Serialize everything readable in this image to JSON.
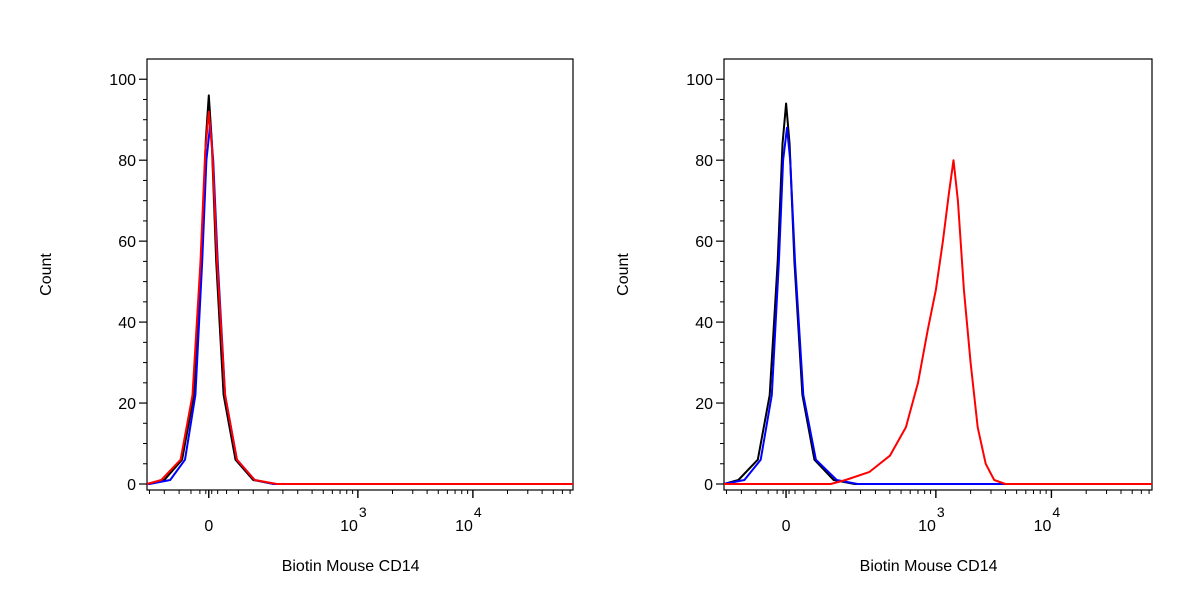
{
  "chart_data": [
    {
      "type": "line",
      "xlabel": "Biotin Mouse CD14",
      "ylabel": "Count",
      "x_scale": "biexponential",
      "ylim": [
        0,
        105
      ],
      "y_ticks": [
        {
          "value": 0,
          "label": "0"
        },
        {
          "value": 20,
          "label": "20"
        },
        {
          "value": 40,
          "label": "40"
        },
        {
          "value": 60,
          "label": "60"
        },
        {
          "value": 80,
          "label": "80"
        },
        {
          "value": 100,
          "label": "100"
        }
      ],
      "x_ticks": [
        {
          "value": 0,
          "label": "0",
          "exp": ""
        },
        {
          "value": 1000,
          "label": "10",
          "exp": "3"
        },
        {
          "value": 10000,
          "label": "10",
          "exp": "4"
        }
      ],
      "series": [
        {
          "color": "#000000",
          "points": [
            [
              -220,
              0
            ],
            [
              -150,
              1
            ],
            [
              -90,
              6
            ],
            [
              -50,
              22
            ],
            [
              -25,
              55
            ],
            [
              -10,
              85
            ],
            [
              0,
              96
            ],
            [
              10,
              85
            ],
            [
              25,
              55
            ],
            [
              50,
              22
            ],
            [
              90,
              6
            ],
            [
              150,
              1
            ],
            [
              220,
              0
            ]
          ]
        },
        {
          "color": "#0000ff",
          "points": [
            [
              -200,
              0
            ],
            [
              -130,
              1
            ],
            [
              -80,
              6
            ],
            [
              -45,
              22
            ],
            [
              -22,
              55
            ],
            [
              -8,
              80
            ],
            [
              5,
              89
            ],
            [
              15,
              80
            ],
            [
              30,
              55
            ],
            [
              55,
              22
            ],
            [
              95,
              6
            ],
            [
              155,
              1
            ],
            [
              220,
              0
            ]
          ]
        },
        {
          "color": "#ff0000",
          "points": [
            [
              -230,
              0
            ],
            [
              -160,
              1
            ],
            [
              -95,
              6
            ],
            [
              -55,
              22
            ],
            [
              -28,
              55
            ],
            [
              -12,
              82
            ],
            [
              0,
              92
            ],
            [
              12,
              82
            ],
            [
              28,
              55
            ],
            [
              55,
              22
            ],
            [
              95,
              6
            ],
            [
              155,
              1
            ],
            [
              230,
              0
            ]
          ]
        }
      ]
    },
    {
      "type": "line",
      "xlabel": "Biotin Mouse CD14",
      "ylabel": "Count",
      "x_scale": "biexponential",
      "ylim": [
        0,
        105
      ],
      "y_ticks": [
        {
          "value": 0,
          "label": "0"
        },
        {
          "value": 20,
          "label": "20"
        },
        {
          "value": 40,
          "label": "40"
        },
        {
          "value": 60,
          "label": "60"
        },
        {
          "value": 80,
          "label": "80"
        },
        {
          "value": 100,
          "label": "100"
        }
      ],
      "x_ticks": [
        {
          "value": 0,
          "label": "0",
          "exp": ""
        },
        {
          "value": 1000,
          "label": "10",
          "exp": "3"
        },
        {
          "value": 10000,
          "label": "10",
          "exp": "4"
        }
      ],
      "series": [
        {
          "color": "#000000",
          "points": [
            [
              -230,
              0
            ],
            [
              -160,
              1
            ],
            [
              -95,
              6
            ],
            [
              -55,
              22
            ],
            [
              -28,
              55
            ],
            [
              -12,
              84
            ],
            [
              0,
              94
            ],
            [
              12,
              84
            ],
            [
              28,
              55
            ],
            [
              55,
              22
            ],
            [
              95,
              6
            ],
            [
              160,
              1
            ],
            [
              230,
              0
            ]
          ]
        },
        {
          "color": "#0000ff",
          "points": [
            [
              -210,
              0
            ],
            [
              -140,
              1
            ],
            [
              -85,
              6
            ],
            [
              -48,
              22
            ],
            [
              -24,
              55
            ],
            [
              -10,
              80
            ],
            [
              3,
              88
            ],
            [
              14,
              80
            ],
            [
              30,
              55
            ],
            [
              58,
              22
            ],
            [
              100,
              6
            ],
            [
              170,
              1
            ],
            [
              240,
              0
            ]
          ]
        },
        {
          "color": "#ff0000",
          "points": [
            [
              150,
              0
            ],
            [
              200,
              1
            ],
            [
              280,
              3
            ],
            [
              400,
              7
            ],
            [
              550,
              14
            ],
            [
              700,
              25
            ],
            [
              850,
              38
            ],
            [
              1000,
              48
            ],
            [
              1150,
              60
            ],
            [
              1300,
              72
            ],
            [
              1420,
              80
            ],
            [
              1550,
              70
            ],
            [
              1750,
              48
            ],
            [
              2000,
              30
            ],
            [
              2300,
              14
            ],
            [
              2700,
              5
            ],
            [
              3200,
              1
            ],
            [
              4000,
              0
            ]
          ]
        }
      ]
    }
  ]
}
